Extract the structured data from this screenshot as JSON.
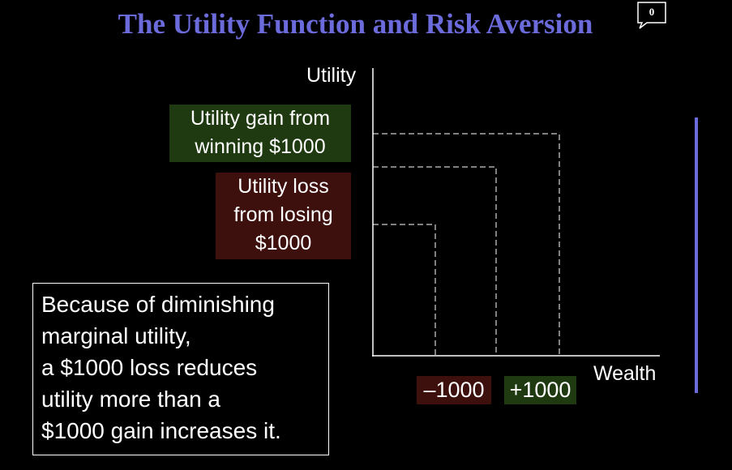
{
  "slide": {
    "title": "The Utility Function and Risk Aversion",
    "comment_count": "0",
    "accent_color": "#6b6bdc"
  },
  "diagram": {
    "y_axis_label": "Utility",
    "x_axis_label": "Wealth",
    "gain_label_lines": [
      "Utility gain from",
      "winning $1000"
    ],
    "loss_label_lines": [
      "Utility loss",
      "from losing",
      "$1000"
    ],
    "tick_negative": "–1000",
    "tick_positive": "+1000",
    "gain_color": "#1f3a10",
    "loss_color": "#3d0f0d"
  },
  "note": {
    "lines": [
      "Because of diminishing",
      "marginal utility,",
      "a $1000 loss reduces",
      "utility more than a",
      "$1000 gain increases it."
    ]
  }
}
